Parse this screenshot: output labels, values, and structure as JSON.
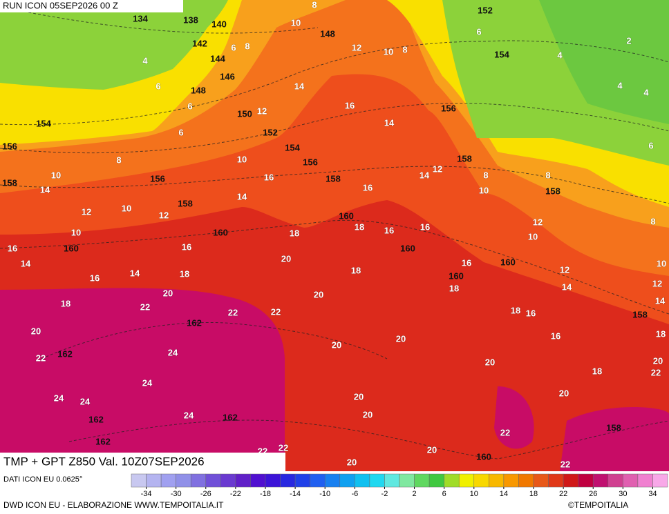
{
  "header": {
    "run": "RUN ICON 05SEP2026 00 Z",
    "title": "TMP + GPT Z850 Val. 10Z07SEP2026"
  },
  "footer": {
    "data_source": "DATI ICON EU 0.0625°",
    "credit": "DWD ICON EU - ELABORAZIONE WWW.TEMPOITALIA.IT",
    "copyright": "©TEMPOITALIA"
  },
  "colorbar": {
    "ticks": [
      -34,
      -30,
      -26,
      -22,
      -18,
      -14,
      -10,
      -6,
      -2,
      2,
      6,
      10,
      14,
      18,
      22,
      26,
      30,
      34
    ],
    "colors": [
      "#c8c8f0",
      "#b4b4f0",
      "#a0a0f0",
      "#9090e8",
      "#8070e0",
      "#7050d8",
      "#6a3ad0",
      "#6020c8",
      "#5010d0",
      "#3c14d8",
      "#2828e0",
      "#2040e8",
      "#2060f0",
      "#1880f0",
      "#10a0f0",
      "#10c0f0",
      "#20d8f0",
      "#60e8e0",
      "#80e8a0",
      "#60d860",
      "#40c840",
      "#a0dc28",
      "#f0f000",
      "#f8d800",
      "#f8b800",
      "#f89800",
      "#f07800",
      "#e85818",
      "#e03818",
      "#d01818",
      "#c00040",
      "#c01070",
      "#d04090",
      "#e060b0",
      "#f080d0",
      "#f8a8e8"
    ]
  },
  "map": {
    "geopotential_labels": [
      134,
      138,
      140,
      142,
      144,
      146,
      148,
      150,
      152,
      154,
      156,
      158,
      160,
      160,
      160,
      158,
      156,
      156,
      154,
      158,
      148,
      152,
      154,
      156,
      158,
      158,
      160,
      160,
      160,
      158,
      162,
      162,
      162,
      162,
      162,
      158,
      160
    ],
    "temperature_labels": [
      10,
      8,
      6,
      8,
      12,
      10,
      8,
      6,
      4,
      2,
      4,
      4,
      6,
      4,
      6,
      6,
      6,
      8,
      10,
      14,
      12,
      10,
      12,
      10,
      16,
      14,
      16,
      14,
      18,
      20,
      22,
      22,
      20,
      18,
      16,
      14,
      16,
      10,
      12,
      14,
      16,
      14,
      16,
      12,
      14,
      10,
      8,
      8,
      12,
      10,
      12,
      14,
      10,
      12,
      14,
      16,
      18,
      18,
      16,
      20,
      22,
      18,
      20,
      22,
      20,
      20,
      20,
      20,
      20,
      20,
      20,
      20,
      18,
      18,
      18,
      16,
      16,
      16,
      18,
      20,
      22,
      22,
      24,
      24,
      24,
      24,
      24,
      22,
      22,
      22,
      8
    ]
  }
}
